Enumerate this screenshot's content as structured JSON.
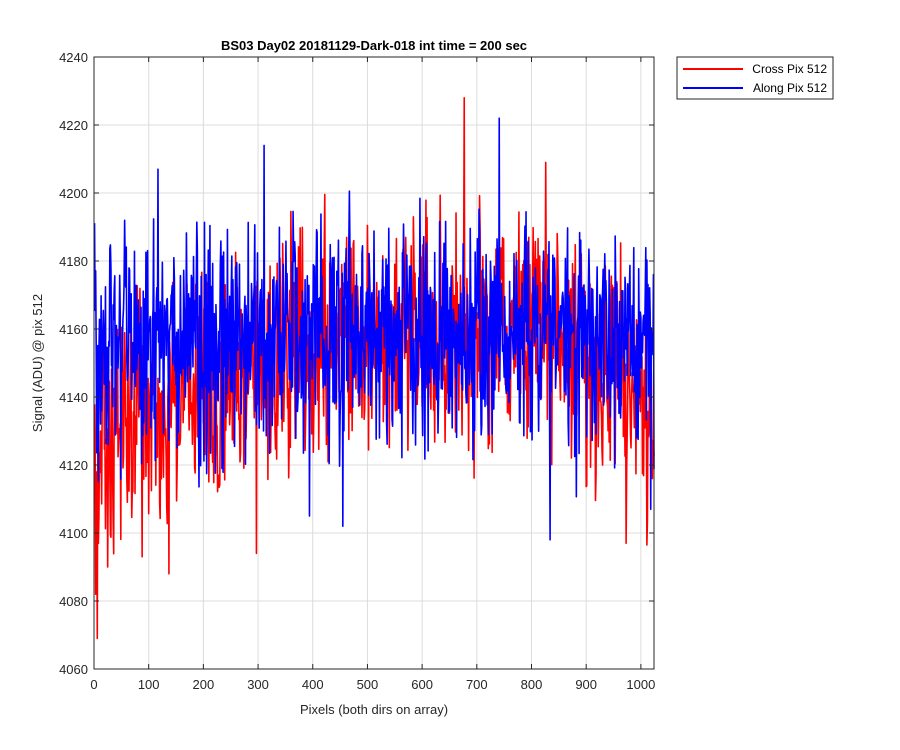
{
  "chart_data": {
    "type": "line",
    "title": "BS03 Day02 20181129-Dark-018 int time = 200 sec",
    "xlabel": "Pixels (both dirs on array)",
    "ylabel": "Signal (ADU) @ pix 512",
    "xlim": [
      0,
      1024
    ],
    "ylim": [
      4060,
      4240
    ],
    "xticks": [
      0,
      100,
      200,
      300,
      400,
      500,
      600,
      700,
      800,
      900,
      1000
    ],
    "yticks": [
      4060,
      4080,
      4100,
      4120,
      4140,
      4160,
      4180,
      4200,
      4220,
      4240
    ],
    "grid": true,
    "legend_position": "outside-top-right",
    "x_start": 1,
    "x_step": 1,
    "noise_amplitude": 16,
    "series": [
      {
        "name": "Cross Pix 512",
        "color": "#ff0000",
        "mean_profile_x": [
          0,
          5,
          20,
          60,
          120,
          200,
          260,
          300,
          400,
          500,
          600,
          700,
          800,
          880,
          940,
          1000,
          1024
        ],
        "mean_profile_y": [
          4120,
          4118,
          4130,
          4133,
          4138,
          4142,
          4148,
          4152,
          4157,
          4158,
          4160,
          4160,
          4157,
          4153,
          4146,
          4137,
          4133
        ],
        "extremes": [
          {
            "x": 6,
            "y": 4069
          },
          {
            "x": 3,
            "y": 4082
          },
          {
            "x": 25,
            "y": 4090
          },
          {
            "x": 88,
            "y": 4093
          },
          {
            "x": 137,
            "y": 4088
          },
          {
            "x": 297,
            "y": 4094
          },
          {
            "x": 677,
            "y": 4228
          },
          {
            "x": 826,
            "y": 4209
          },
          {
            "x": 973,
            "y": 4097
          }
        ]
      },
      {
        "name": "Along Pix 512",
        "color": "#0000ff",
        "mean_profile_x": [
          0,
          100,
          200,
          300,
          400,
          500,
          600,
          700,
          800,
          900,
          1000,
          1024
        ],
        "mean_profile_y": [
          4155,
          4157,
          4157,
          4158,
          4157,
          4158,
          4158,
          4158,
          4157,
          4156,
          4155,
          4154
        ],
        "extremes": [
          {
            "x": 117,
            "y": 4207
          },
          {
            "x": 311,
            "y": 4214
          },
          {
            "x": 741,
            "y": 4222
          },
          {
            "x": 455,
            "y": 4102
          },
          {
            "x": 834,
            "y": 4098
          },
          {
            "x": 394,
            "y": 4105
          },
          {
            "x": 1018,
            "y": 4107
          }
        ]
      }
    ]
  }
}
